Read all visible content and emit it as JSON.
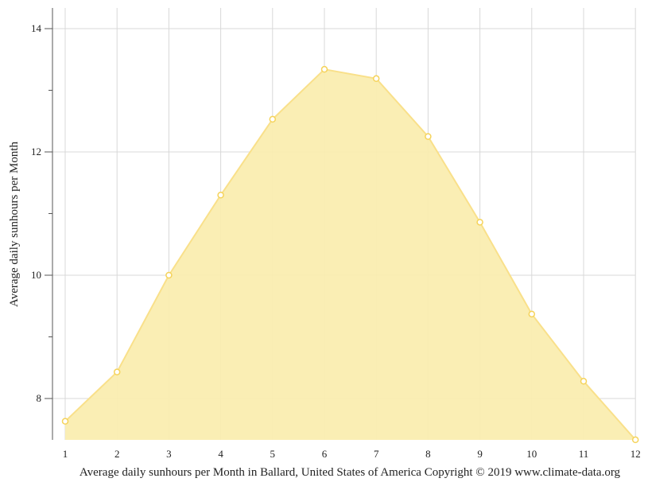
{
  "chart_data": {
    "type": "area",
    "title": "",
    "xlabel": "Average daily sunhours per Month in Ballard, United States of America Copyright © 2019 www.climate-data.org",
    "ylabel": "Average daily sunhours per Month",
    "categories": [
      "1",
      "2",
      "3",
      "4",
      "5",
      "6",
      "7",
      "8",
      "9",
      "10",
      "11",
      "12"
    ],
    "series": [
      {
        "name": "Average daily sunhours",
        "values": [
          7.63,
          8.43,
          10.0,
          11.3,
          12.53,
          13.34,
          13.19,
          12.25,
          10.86,
          9.37,
          8.28,
          7.33
        ],
        "color": "#f9e08a",
        "fill": "#faedb0"
      }
    ],
    "yticks": [
      8,
      10,
      12,
      14
    ],
    "yminor": [
      9,
      11,
      13
    ],
    "ylim": [
      7.33,
      14.4
    ],
    "grid": true,
    "legend": "none"
  },
  "labels": {
    "ylabel": "Average daily sunhours per Month",
    "xlabel": "Average daily sunhours per Month in Ballard, United States of America Copyright © 2019 www.climate-data.org"
  }
}
